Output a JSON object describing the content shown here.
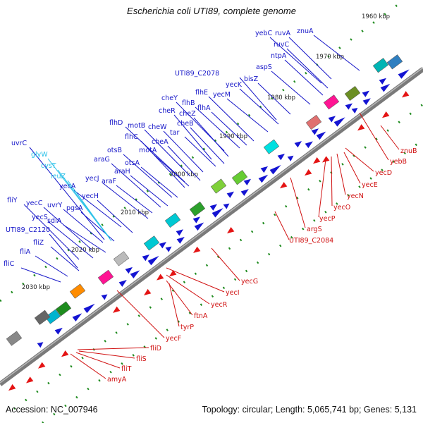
{
  "title": "Escherichia coli UTI89, complete genome",
  "accession_text": "Accession: NC_007946",
  "summary_text": "Topology: circular; Length: 5,065,741 bp; Genes: 5,131",
  "colors": {
    "backbone": "#7a7a7a",
    "label_blue": "#1515c8",
    "label_cyan": "#28c0e8",
    "label_red": "#d01010",
    "dot": "#1d8a1d",
    "gene_blue": "#1414d2",
    "gene_red": "#e41414"
  },
  "kbp_ticks": [
    "1960 kbp",
    "1970 kbp",
    "1980 kbp",
    "1990 kbp",
    "2000 kbp",
    "2010 kbp",
    "2020 kbp",
    "2030 kbp"
  ],
  "labels_blue": [
    "znuA",
    "yebC",
    "ruvA",
    "ruvC",
    "ntpA",
    "aspS",
    "bisZ",
    "UTI89_C2078",
    "yecK",
    "yecM",
    "flhE",
    "flhB",
    "cheY",
    "flhA",
    "cheR",
    "cheZ",
    "cheB",
    "flhD",
    "motB",
    "cheW",
    "flhC",
    "tar",
    "cheA",
    "otsB",
    "motA",
    "araG",
    "otsA",
    "araH",
    "yecJ",
    "araF",
    "uvrC",
    "yecA",
    "yecH",
    "fliY",
    "yecC",
    "uvrY",
    "pgsA",
    "yecS",
    "sdiA",
    "UTI89_C2120",
    "fliZ",
    "fliA",
    "fliC"
  ],
  "labels_cyan": [
    "glyW",
    "cysT",
    "leuZ"
  ],
  "labels_red": [
    "znuB",
    "yebB",
    "yecD",
    "yecE",
    "yecN",
    "yecO",
    "yecP",
    "argS",
    "UTI89_C2084",
    "yecG",
    "yecI",
    "yecR",
    "ftnA",
    "tyrP",
    "yecF",
    "fliD",
    "fliS",
    "fliT",
    "amyA"
  ]
}
